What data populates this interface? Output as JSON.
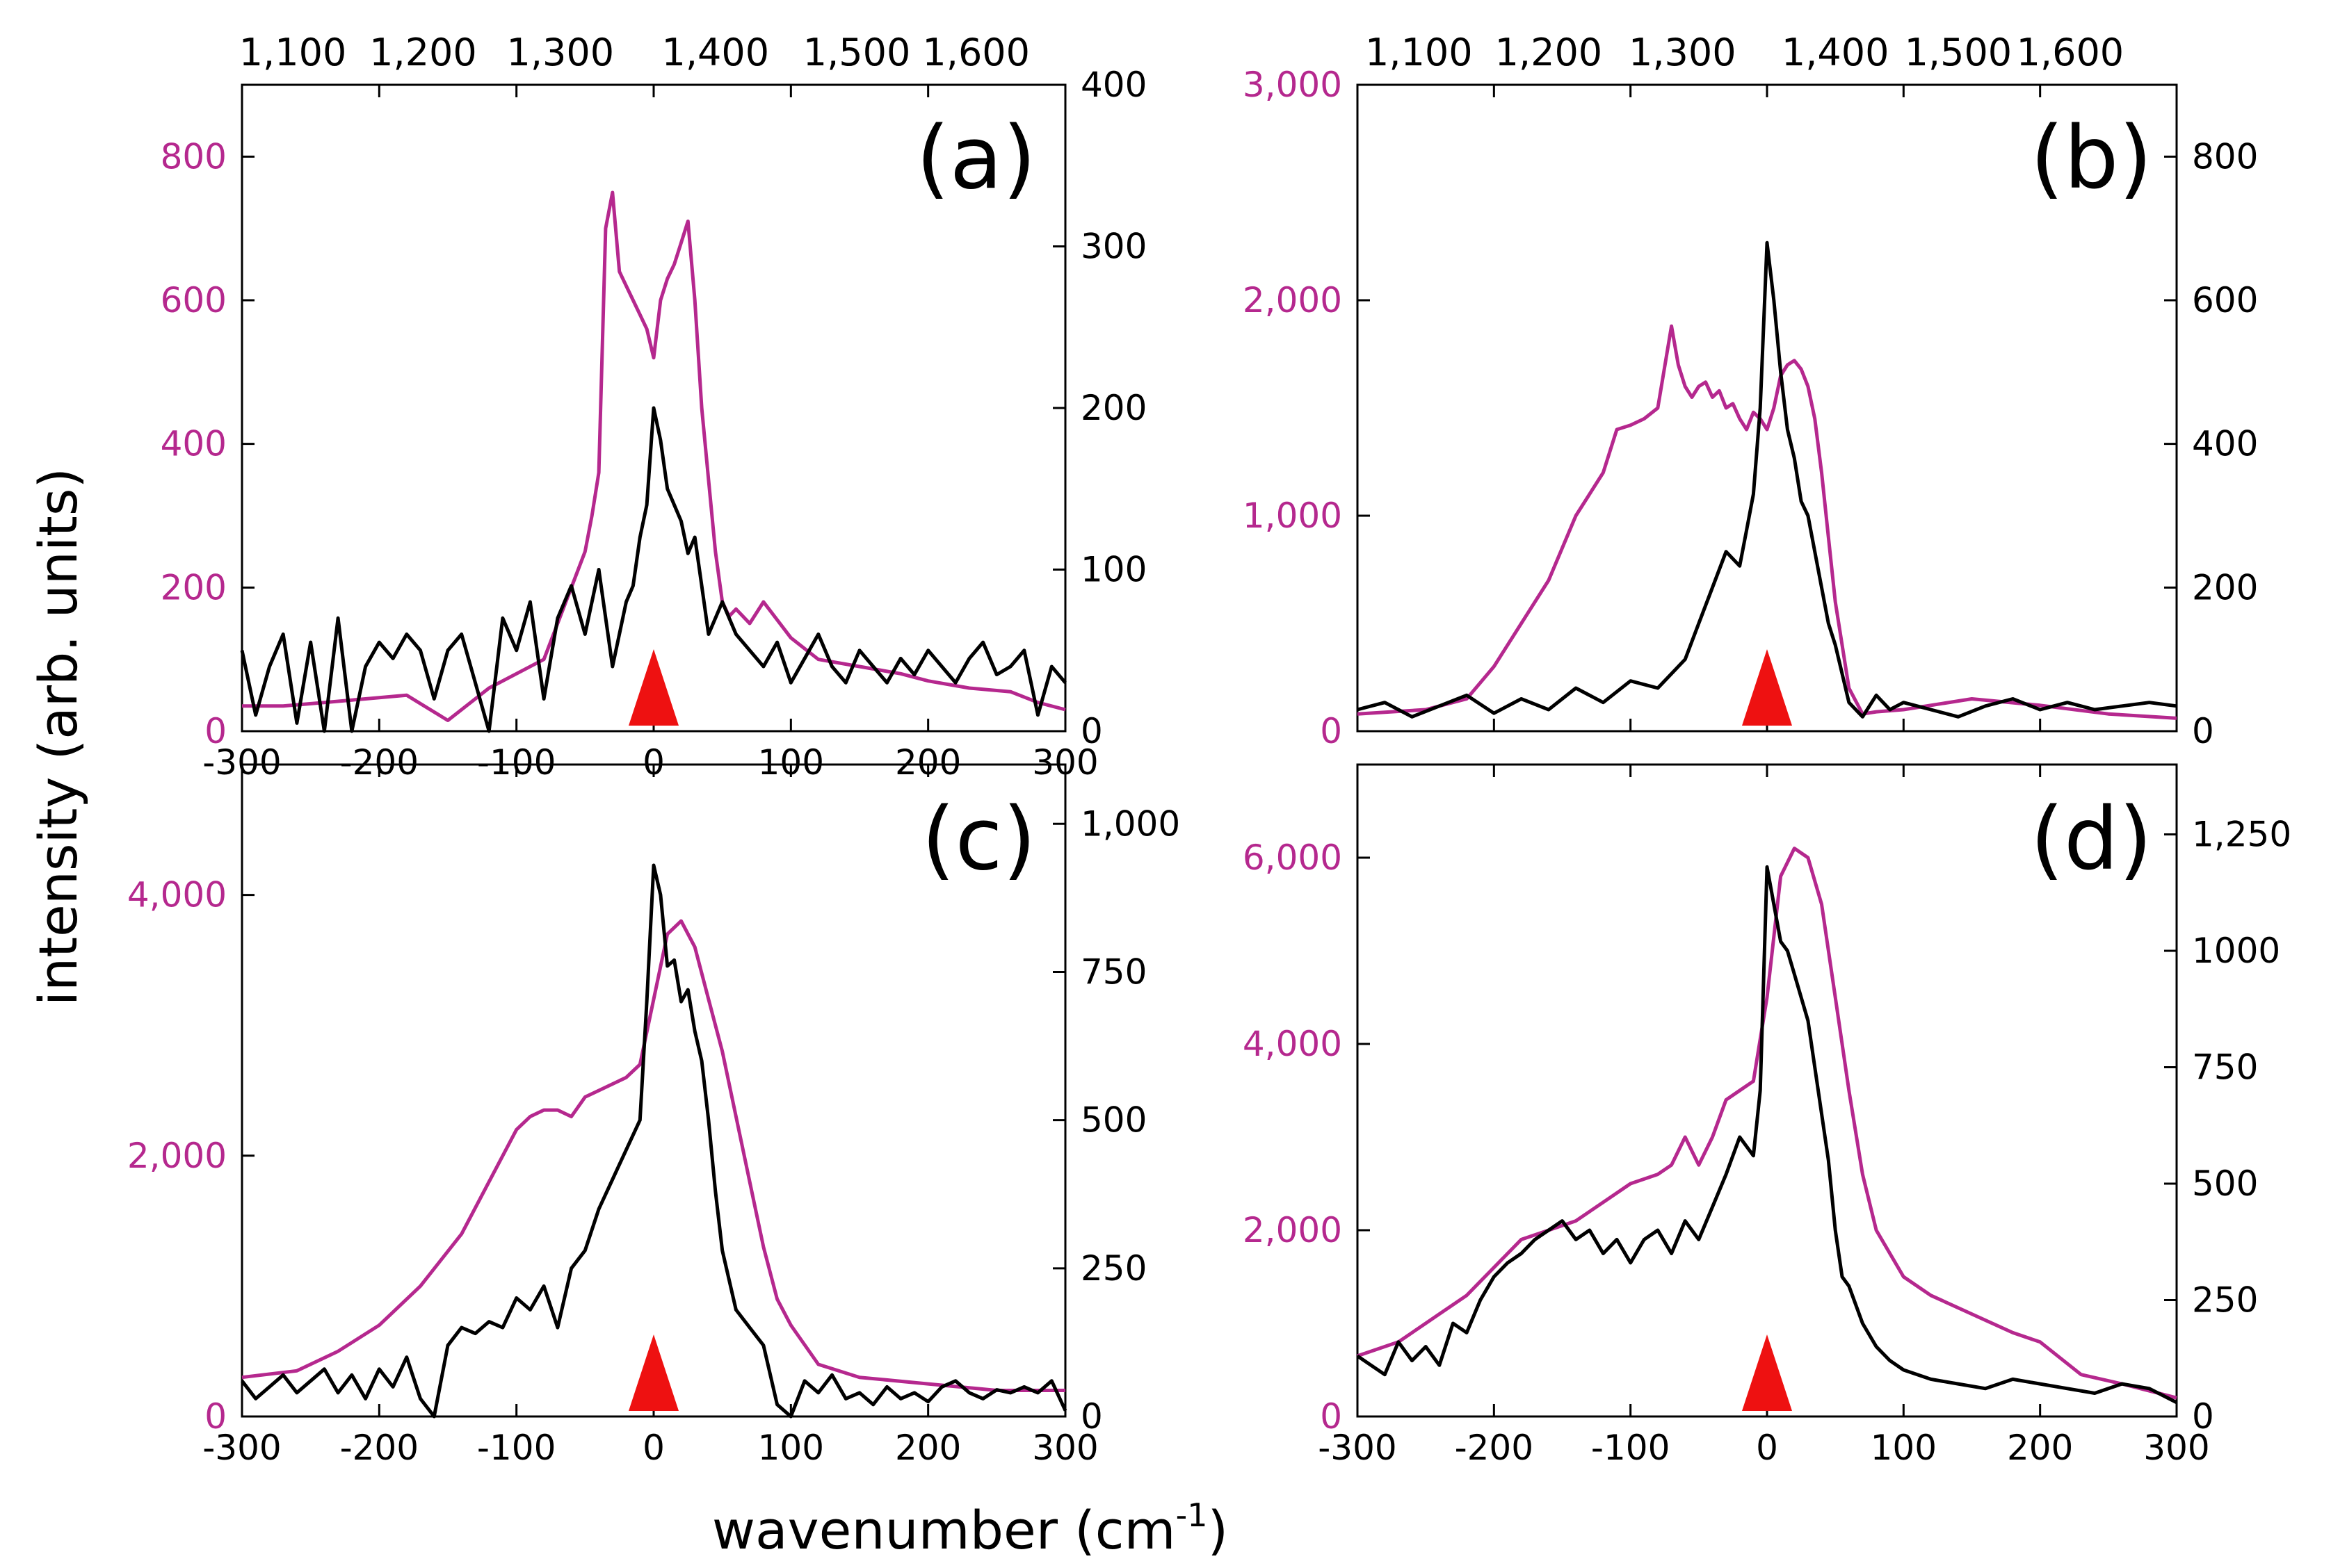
{
  "figure": {
    "xlabel_main": "wavenumber (cm",
    "xlabel_sup": "-1",
    "xlabel_close": ")",
    "ylabel": "intensity (arb. units)",
    "colors": {
      "magenta": "#b5288e",
      "black": "#000000",
      "marker": "#ee1111"
    }
  },
  "chart_data": [
    {
      "panel": "(a)",
      "type": "line",
      "xlim": [
        -300,
        300
      ],
      "x_ticks": [
        "-300",
        "-200",
        "-100",
        "0",
        "100",
        "200",
        "300"
      ],
      "top_axis_ticks": [
        "1,100",
        "1,200",
        "1,300",
        "1,400",
        "1,500",
        "1,600"
      ],
      "top_axis_positions": [
        -263,
        -168,
        -68,
        45,
        148,
        235
      ],
      "left_ylim": [
        0,
        900
      ],
      "left_ticks": [
        0,
        200,
        400,
        600,
        800
      ],
      "left_tick_labels": [
        "0",
        "200",
        "400",
        "600",
        "800"
      ],
      "right_ylim": [
        0,
        400
      ],
      "right_ticks": [
        0,
        100,
        200,
        300,
        400
      ],
      "right_tick_labels": [
        "0",
        "100",
        "200",
        "300",
        "400"
      ],
      "marker_x": 0,
      "series": [
        {
          "name": "magenta",
          "axis": "left",
          "color": "#b5288e",
          "x": [
            -300,
            -270,
            -240,
            -210,
            -180,
            -150,
            -120,
            -100,
            -80,
            -70,
            -60,
            -50,
            -45,
            -40,
            -35,
            -30,
            -25,
            -20,
            -15,
            -10,
            -5,
            0,
            5,
            10,
            15,
            20,
            25,
            30,
            35,
            40,
            45,
            50,
            55,
            60,
            70,
            80,
            100,
            120,
            150,
            180,
            200,
            230,
            260,
            280,
            300
          ],
          "y": [
            35,
            35,
            40,
            45,
            50,
            15,
            60,
            80,
            100,
            150,
            200,
            250,
            300,
            360,
            700,
            750,
            640,
            620,
            600,
            580,
            560,
            520,
            600,
            630,
            650,
            680,
            710,
            600,
            450,
            350,
            250,
            180,
            160,
            170,
            150,
            180,
            130,
            100,
            90,
            80,
            70,
            60,
            55,
            40,
            30
          ]
        },
        {
          "name": "black",
          "axis": "right",
          "color": "#000000",
          "x": [
            -300,
            -290,
            -280,
            -270,
            -260,
            -250,
            -240,
            -230,
            -220,
            -210,
            -200,
            -190,
            -180,
            -170,
            -160,
            -150,
            -140,
            -130,
            -120,
            -110,
            -100,
            -90,
            -80,
            -70,
            -60,
            -50,
            -40,
            -30,
            -20,
            -15,
            -10,
            -5,
            0,
            5,
            10,
            15,
            20,
            25,
            30,
            35,
            40,
            45,
            50,
            60,
            70,
            80,
            90,
            100,
            110,
            120,
            130,
            140,
            150,
            160,
            170,
            180,
            190,
            200,
            210,
            220,
            230,
            240,
            250,
            260,
            270,
            280,
            290,
            300
          ],
          "y": [
            50,
            10,
            40,
            60,
            5,
            55,
            0,
            70,
            0,
            40,
            55,
            45,
            60,
            50,
            20,
            50,
            60,
            30,
            0,
            70,
            50,
            80,
            20,
            70,
            90,
            60,
            100,
            40,
            80,
            90,
            120,
            140,
            200,
            180,
            150,
            140,
            130,
            110,
            120,
            90,
            60,
            70,
            80,
            60,
            50,
            40,
            55,
            30,
            45,
            60,
            40,
            30,
            50,
            40,
            30,
            45,
            35,
            50,
            40,
            30,
            45,
            55,
            35,
            40,
            50,
            10,
            40,
            30
          ]
        }
      ]
    },
    {
      "panel": "(b)",
      "type": "line",
      "xlim": [
        -300,
        300
      ],
      "x_ticks": [],
      "top_axis_ticks": [
        "1,100",
        "1,200",
        "1,300",
        "1,400",
        "1,500",
        "1,600"
      ],
      "top_axis_positions": [
        -255,
        -160,
        -62,
        50,
        140,
        222
      ],
      "left_ylim": [
        0,
        3000
      ],
      "left_ticks": [
        0,
        1000,
        2000,
        3000
      ],
      "left_tick_labels": [
        "0",
        "1,000",
        "2,000",
        "3,000"
      ],
      "right_ylim": [
        0,
        900
      ],
      "right_ticks": [
        0,
        200,
        400,
        600,
        800
      ],
      "right_tick_labels": [
        "0",
        "200",
        "400",
        "600",
        "800"
      ],
      "marker_x": 0,
      "series": [
        {
          "name": "magenta",
          "axis": "left",
          "color": "#b5288e",
          "x": [
            -300,
            -250,
            -220,
            -200,
            -180,
            -160,
            -140,
            -120,
            -110,
            -100,
            -90,
            -80,
            -70,
            -65,
            -60,
            -55,
            -50,
            -45,
            -40,
            -35,
            -30,
            -25,
            -20,
            -15,
            -10,
            -5,
            0,
            5,
            10,
            15,
            20,
            25,
            30,
            35,
            40,
            45,
            50,
            55,
            60,
            70,
            80,
            100,
            150,
            200,
            250,
            300
          ],
          "y": [
            80,
            100,
            150,
            300,
            500,
            700,
            1000,
            1200,
            1400,
            1420,
            1450,
            1500,
            1880,
            1700,
            1600,
            1550,
            1600,
            1620,
            1550,
            1580,
            1500,
            1520,
            1450,
            1400,
            1480,
            1450,
            1400,
            1500,
            1650,
            1700,
            1720,
            1680,
            1600,
            1450,
            1200,
            900,
            600,
            400,
            200,
            80,
            90,
            100,
            150,
            120,
            80,
            60
          ]
        },
        {
          "name": "black",
          "axis": "right",
          "color": "#000000",
          "x": [
            -300,
            -280,
            -260,
            -240,
            -220,
            -200,
            -180,
            -160,
            -140,
            -120,
            -100,
            -80,
            -60,
            -50,
            -40,
            -30,
            -20,
            -15,
            -10,
            -5,
            0,
            5,
            10,
            15,
            20,
            25,
            30,
            35,
            40,
            45,
            50,
            55,
            60,
            70,
            80,
            90,
            100,
            120,
            140,
            160,
            180,
            200,
            220,
            240,
            260,
            280,
            300
          ],
          "y": [
            30,
            40,
            20,
            35,
            50,
            25,
            45,
            30,
            60,
            40,
            70,
            60,
            100,
            150,
            200,
            250,
            230,
            280,
            330,
            450,
            680,
            600,
            500,
            420,
            380,
            320,
            300,
            250,
            200,
            150,
            120,
            80,
            40,
            20,
            50,
            30,
            40,
            30,
            20,
            35,
            45,
            30,
            40,
            30,
            35,
            40,
            35
          ]
        }
      ]
    },
    {
      "panel": "(c)",
      "type": "line",
      "xlim": [
        -300,
        300
      ],
      "x_ticks": [
        "-300",
        "-200",
        "-100",
        "0",
        "100",
        "200",
        "300"
      ],
      "top_axis_ticks": [],
      "top_axis_positions": [],
      "left_ylim": [
        0,
        5000
      ],
      "left_ticks": [
        0,
        2000,
        4000
      ],
      "left_tick_labels": [
        "0",
        "2,000",
        "4,000"
      ],
      "right_ylim": [
        0,
        1100
      ],
      "right_ticks": [
        0,
        250,
        500,
        750,
        1000
      ],
      "right_tick_labels": [
        "0",
        "250",
        "500",
        "750",
        "1,000"
      ],
      "marker_x": 0,
      "series": [
        {
          "name": "magenta",
          "axis": "left",
          "color": "#b5288e",
          "x": [
            -300,
            -260,
            -230,
            -200,
            -170,
            -140,
            -120,
            -100,
            -90,
            -80,
            -70,
            -60,
            -50,
            -40,
            -30,
            -20,
            -10,
            0,
            10,
            20,
            30,
            40,
            50,
            60,
            70,
            80,
            90,
            100,
            120,
            150,
            200,
            250,
            300
          ],
          "y": [
            300,
            350,
            500,
            700,
            1000,
            1400,
            1800,
            2200,
            2300,
            2350,
            2350,
            2300,
            2450,
            2500,
            2550,
            2600,
            2700,
            3200,
            3700,
            3800,
            3600,
            3200,
            2800,
            2300,
            1800,
            1300,
            900,
            700,
            400,
            300,
            250,
            200,
            200
          ]
        },
        {
          "name": "black",
          "axis": "right",
          "color": "#000000",
          "x": [
            -300,
            -290,
            -280,
            -270,
            -260,
            -250,
            -240,
            -230,
            -220,
            -210,
            -200,
            -190,
            -180,
            -170,
            -160,
            -150,
            -140,
            -130,
            -120,
            -110,
            -100,
            -90,
            -80,
            -70,
            -60,
            -50,
            -40,
            -30,
            -20,
            -10,
            -5,
            0,
            5,
            10,
            15,
            20,
            25,
            30,
            35,
            40,
            45,
            50,
            60,
            70,
            80,
            90,
            100,
            110,
            120,
            130,
            140,
            150,
            160,
            170,
            180,
            190,
            200,
            210,
            220,
            230,
            240,
            250,
            260,
            270,
            280,
            290,
            300
          ],
          "y": [
            60,
            30,
            50,
            70,
            40,
            60,
            80,
            40,
            70,
            30,
            80,
            50,
            100,
            30,
            0,
            120,
            150,
            140,
            160,
            150,
            200,
            180,
            220,
            150,
            250,
            280,
            350,
            400,
            450,
            500,
            700,
            930,
            880,
            760,
            770,
            700,
            720,
            650,
            600,
            500,
            380,
            280,
            180,
            150,
            120,
            20,
            0,
            60,
            40,
            70,
            30,
            40,
            20,
            50,
            30,
            40,
            25,
            50,
            60,
            40,
            30,
            45,
            40,
            50,
            40,
            60,
            10
          ]
        }
      ]
    },
    {
      "panel": "(d)",
      "type": "line",
      "xlim": [
        -300,
        300
      ],
      "x_ticks": [
        "-300",
        "-200",
        "-100",
        "0",
        "100",
        "200",
        "300"
      ],
      "top_axis_ticks": [],
      "top_axis_positions": [],
      "left_ylim": [
        0,
        7000
      ],
      "left_ticks": [
        0,
        2000,
        4000,
        6000
      ],
      "left_tick_labels": [
        "0",
        "2,000",
        "4,000",
        "6,000"
      ],
      "right_ylim": [
        0,
        1400
      ],
      "right_ticks": [
        0,
        250,
        500,
        750,
        1000,
        1250
      ],
      "right_tick_labels": [
        "0",
        "250",
        "500",
        "750",
        "1000",
        "1,250"
      ],
      "marker_x": 0,
      "series": [
        {
          "name": "magenta",
          "axis": "left",
          "color": "#b5288e",
          "x": [
            -300,
            -270,
            -240,
            -220,
            -200,
            -180,
            -160,
            -140,
            -120,
            -100,
            -80,
            -70,
            -60,
            -50,
            -40,
            -30,
            -20,
            -10,
            0,
            10,
            20,
            30,
            40,
            50,
            60,
            70,
            80,
            100,
            120,
            150,
            180,
            200,
            230,
            260,
            300
          ],
          "y": [
            650,
            800,
            1100,
            1300,
            1600,
            1900,
            2000,
            2100,
            2300,
            2500,
            2600,
            2700,
            3000,
            2700,
            3000,
            3400,
            3500,
            3600,
            4500,
            5800,
            6100,
            6000,
            5500,
            4500,
            3500,
            2600,
            2000,
            1500,
            1300,
            1100,
            900,
            800,
            450,
            350,
            200
          ]
        },
        {
          "name": "black",
          "axis": "right",
          "color": "#000000",
          "x": [
            -300,
            -290,
            -280,
            -270,
            -260,
            -250,
            -240,
            -230,
            -220,
            -210,
            -200,
            -190,
            -180,
            -170,
            -160,
            -150,
            -140,
            -130,
            -120,
            -110,
            -100,
            -90,
            -80,
            -70,
            -60,
            -50,
            -40,
            -30,
            -20,
            -10,
            -5,
            0,
            5,
            10,
            15,
            20,
            25,
            30,
            35,
            40,
            45,
            50,
            55,
            60,
            70,
            80,
            90,
            100,
            120,
            140,
            160,
            180,
            200,
            220,
            240,
            260,
            280,
            300
          ],
          "y": [
            130,
            110,
            90,
            160,
            120,
            150,
            110,
            200,
            180,
            250,
            300,
            330,
            350,
            380,
            400,
            420,
            380,
            400,
            350,
            380,
            330,
            380,
            400,
            350,
            420,
            380,
            450,
            520,
            600,
            560,
            700,
            1180,
            1100,
            1020,
            1000,
            950,
            900,
            850,
            750,
            650,
            550,
            400,
            300,
            280,
            200,
            150,
            120,
            100,
            80,
            70,
            60,
            80,
            70,
            60,
            50,
            70,
            60,
            30
          ]
        }
      ]
    }
  ]
}
